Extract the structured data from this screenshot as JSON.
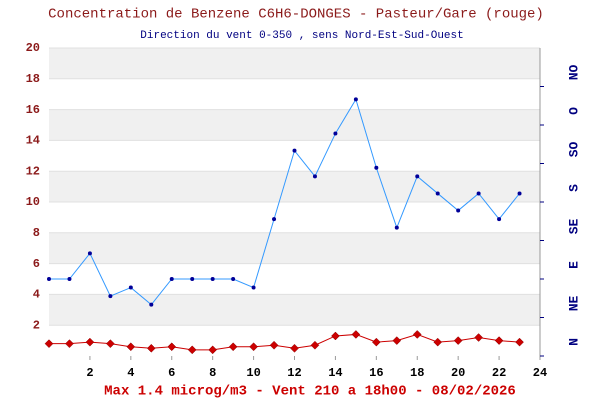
{
  "chart_data": {
    "type": "line",
    "title": "Concentration de Benzene C6H6-DONGES - Pasteur/Gare (rouge)",
    "subtitle": "Direction du vent 0-350 , sens Nord-Est-Sud-Ouest",
    "footer": "Max 1.4 microg/m3 - Vent 210  a 18h00 - 08/02/2026",
    "x": [
      0,
      1,
      2,
      3,
      4,
      5,
      6,
      7,
      8,
      9,
      10,
      11,
      12,
      13,
      14,
      15,
      16,
      17,
      18,
      19,
      20,
      21,
      22,
      23
    ],
    "xlim": [
      0,
      24
    ],
    "xticks": [
      2,
      4,
      6,
      8,
      10,
      12,
      14,
      16,
      18,
      20,
      22,
      24
    ],
    "ylim": [
      0,
      20
    ],
    "yticks": [
      2,
      4,
      6,
      8,
      10,
      12,
      14,
      16,
      18,
      20
    ],
    "y2lim": [
      0,
      360
    ],
    "y2ticks": [
      {
        "value": 0,
        "label": "N"
      },
      {
        "value": 45,
        "label": "NE"
      },
      {
        "value": 90,
        "label": "E"
      },
      {
        "value": 135,
        "label": "SE"
      },
      {
        "value": 180,
        "label": "S"
      },
      {
        "value": 225,
        "label": "SO"
      },
      {
        "value": 270,
        "label": "O"
      },
      {
        "value": 315,
        "label": "NO"
      }
    ],
    "grid": true,
    "series": [
      {
        "color": "#3399ff",
        "marker": "circle",
        "axis": "y2",
        "values": [
          90,
          90,
          120,
          70,
          80,
          60,
          90,
          90,
          90,
          90,
          80,
          160,
          240,
          210,
          260,
          300,
          220,
          150,
          210,
          190,
          170,
          190,
          160,
          190
        ]
      },
      {
        "color": "#cc0000",
        "marker": "diamond",
        "values": [
          0.8,
          0.8,
          0.9,
          0.8,
          0.6,
          0.5,
          0.6,
          0.4,
          0.4,
          0.6,
          0.6,
          0.7,
          0.5,
          0.7,
          1.3,
          1.4,
          0.9,
          1.0,
          1.4,
          0.9,
          1.0,
          1.2,
          1.0,
          0.9
        ]
      }
    ]
  }
}
